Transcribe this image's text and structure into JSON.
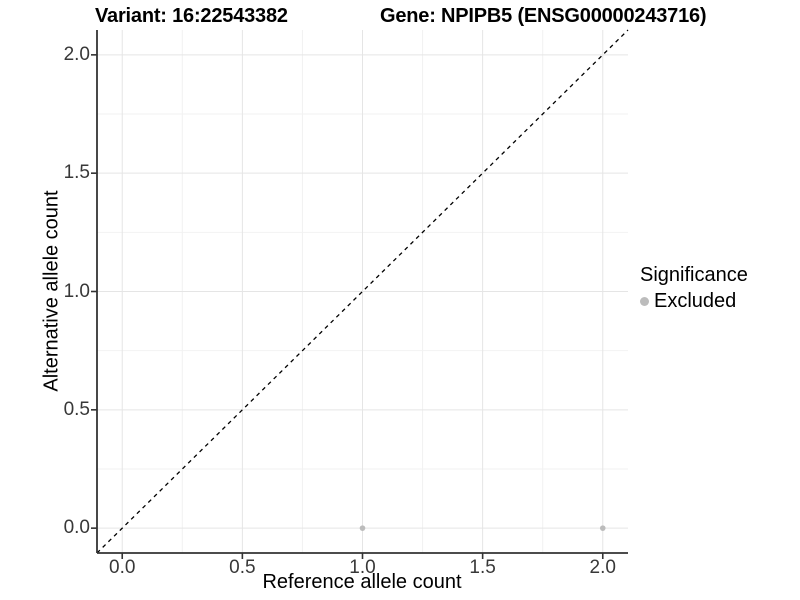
{
  "header": {
    "title_variant": "Variant: 16:22543382",
    "title_gene": "Gene: NPIPB5 (ENSG00000243716)"
  },
  "axes": {
    "x_title": "Reference allele count",
    "y_title": "Alternative allele count",
    "x_tick_labels": [
      "0.0",
      "0.5",
      "1.0",
      "1.5",
      "2.0"
    ],
    "y_tick_labels": [
      "0.0",
      "0.5",
      "1.0",
      "1.5",
      "2.0"
    ]
  },
  "legend": {
    "title": "Significance",
    "entries": [
      {
        "label": "Excluded",
        "color": "#bcbcbc",
        "marker": "circle-icon"
      }
    ]
  },
  "colors": {
    "background": "#ffffff",
    "axis_line": "#333333",
    "tick_text": "#383838",
    "grid_major": "#e5e5e5",
    "grid_minor": "#f2f2f2",
    "reference_line": "#000000",
    "point": "#bcbcbc"
  },
  "chart_data": {
    "type": "scatter",
    "title": "Variant: 16:22543382   |   Gene: NPIPB5 (ENSG00000243716)",
    "xlabel": "Reference allele count",
    "ylabel": "Alternative allele count",
    "xlim": [
      -0.105,
      2.105
    ],
    "ylim": [
      -0.105,
      2.105
    ],
    "x_ticks": [
      0.0,
      0.5,
      1.0,
      1.5,
      2.0
    ],
    "y_ticks": [
      0.0,
      0.5,
      1.0,
      1.5,
      2.0
    ],
    "x_minor_ticks": [
      0.25,
      0.75,
      1.25,
      1.75
    ],
    "y_minor_ticks": [
      0.25,
      0.75,
      1.25,
      1.75
    ],
    "grid": "major+minor",
    "legend_position": "right",
    "legend_title": "Significance",
    "series": [
      {
        "name": "Excluded",
        "color": "#bcbcbc",
        "marker": "circle",
        "points": [
          {
            "x": 1.0,
            "y": 0.0
          },
          {
            "x": 2.0,
            "y": 0.0
          }
        ]
      }
    ],
    "reference_line": {
      "kind": "identity",
      "slope": 1,
      "intercept": 0,
      "linestyle": "dashed",
      "color": "#000000"
    }
  }
}
